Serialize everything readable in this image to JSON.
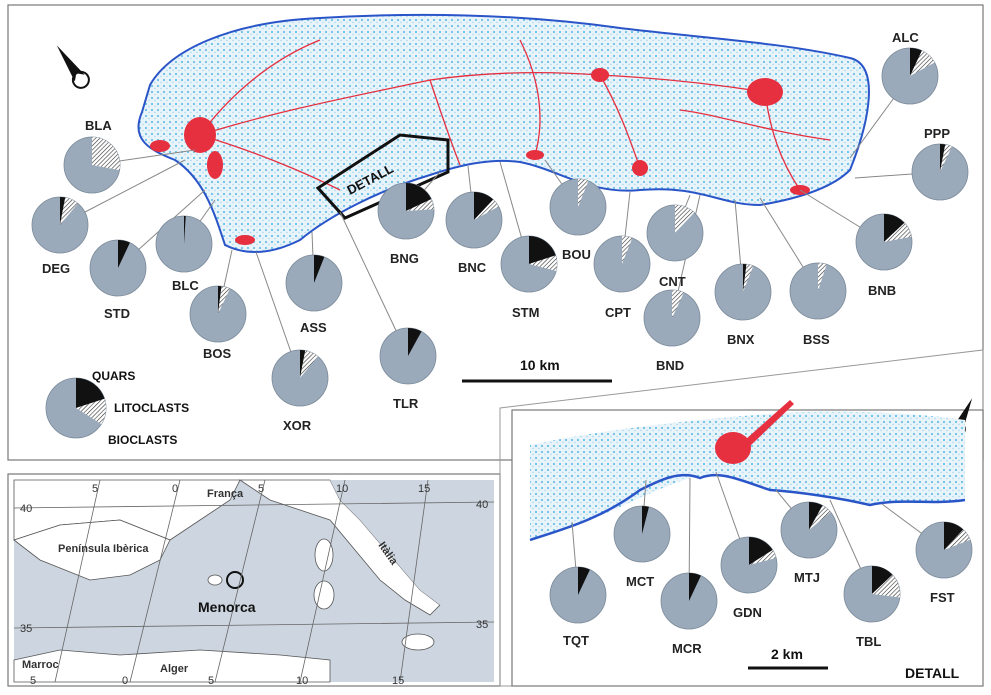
{
  "map": {
    "main_sites": [
      {
        "code": "BLA",
        "q": 0.0,
        "l": 0.28
      },
      {
        "code": "DEG",
        "q": 0.03,
        "l": 0.08
      },
      {
        "code": "STD",
        "q": 0.07,
        "l": 0.0
      },
      {
        "code": "BLC",
        "q": 0.01,
        "l": 0.0
      },
      {
        "code": "BOS",
        "q": 0.02,
        "l": 0.05
      },
      {
        "code": "ASS",
        "q": 0.06,
        "l": 0.0
      },
      {
        "code": "XOR",
        "q": 0.03,
        "l": 0.08
      },
      {
        "code": "TLR",
        "q": 0.08,
        "l": 0.0
      },
      {
        "code": "BNG",
        "q": 0.18,
        "l": 0.06
      },
      {
        "code": "BNC",
        "q": 0.12,
        "l": 0.05
      },
      {
        "code": "STM",
        "q": 0.2,
        "l": 0.09
      },
      {
        "code": "BOU",
        "q": 0.0,
        "l": 0.06
      },
      {
        "code": "CPT",
        "q": 0.0,
        "l": 0.06
      },
      {
        "code": "BND",
        "q": 0.0,
        "l": 0.07
      },
      {
        "code": "CNT",
        "q": 0.0,
        "l": 0.12
      },
      {
        "code": "BNX",
        "q": 0.02,
        "l": 0.04
      },
      {
        "code": "BSS",
        "q": 0.0,
        "l": 0.05
      },
      {
        "code": "BNB",
        "q": 0.13,
        "l": 0.09
      },
      {
        "code": "ALC",
        "q": 0.07,
        "l": 0.1
      },
      {
        "code": "PPP",
        "q": 0.03,
        "l": 0.04
      }
    ],
    "detail_sites": [
      {
        "code": "TQT",
        "q": 0.07,
        "l": 0.0
      },
      {
        "code": "MCT",
        "q": 0.04,
        "l": 0.0
      },
      {
        "code": "MCR",
        "q": 0.07,
        "l": 0.0
      },
      {
        "code": "GDN",
        "q": 0.16,
        "l": 0.05
      },
      {
        "code": "MTJ",
        "q": 0.08,
        "l": 0.06
      },
      {
        "code": "TBL",
        "q": 0.13,
        "l": 0.14
      },
      {
        "code": "FST",
        "q": 0.12,
        "l": 0.07
      }
    ],
    "detail_box_label": "DETALL",
    "scale_main": "10 km",
    "scale_detail": "2 km",
    "detail_title": "DETALL",
    "legend": {
      "quars": "QUARS",
      "lito": "LITOCLASTS",
      "bio": "BIOCLASTS"
    },
    "inset": {
      "countries": [
        "França",
        "Península Ibèrica",
        "Itàlia",
        "Marroc",
        "Alger"
      ],
      "island": "Menorca",
      "lon_ticks_top": [
        "5",
        "0",
        "5",
        "10",
        "15"
      ],
      "lon_ticks_bottom": [
        "5",
        "0",
        "5",
        "10",
        "15"
      ],
      "lat_ticks_left": [
        "40",
        "35"
      ],
      "lat_ticks_right": [
        "40",
        "35"
      ]
    },
    "colors": {
      "bioclasts": "#9aaabb",
      "quars": "#111111",
      "urban": "#e63040",
      "water": "#5ab4e0",
      "coast": "#2a55c8"
    }
  }
}
